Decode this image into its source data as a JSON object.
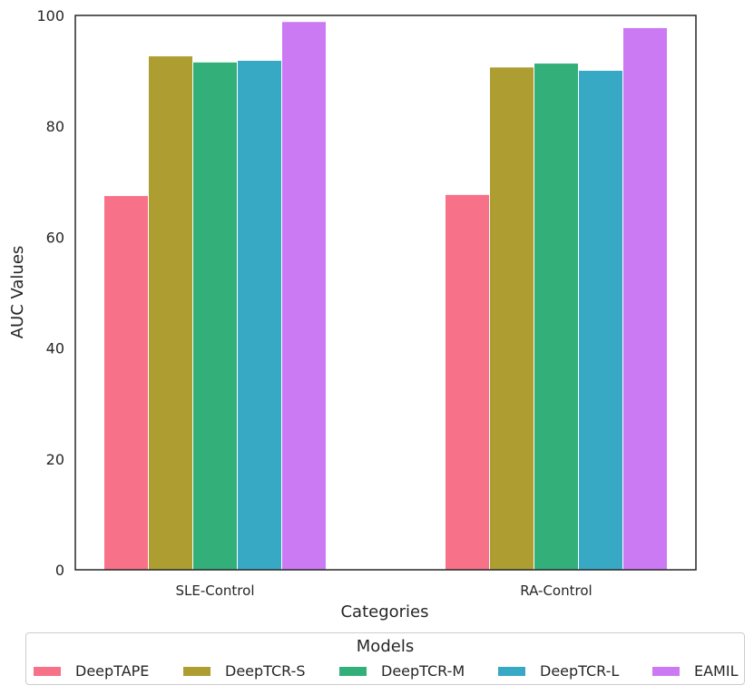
{
  "chart_data": {
    "type": "bar",
    "title": "",
    "xlabel": "Categories",
    "ylabel": "AUC Values",
    "ylim": [
      0,
      100
    ],
    "yticks": [
      0,
      20,
      40,
      60,
      80,
      100
    ],
    "categories": [
      "SLE-Control",
      "RA-Control"
    ],
    "series": [
      {
        "name": "DeepTAPE",
        "color": "#f77189",
        "values": [
          67.5,
          67.7
        ]
      },
      {
        "name": "DeepTCR-S",
        "color": "#ae9d31",
        "values": [
          92.7,
          90.7
        ]
      },
      {
        "name": "DeepTCR-M",
        "color": "#33b07a",
        "values": [
          91.6,
          91.4
        ]
      },
      {
        "name": "DeepTCR-L",
        "color": "#38a9c5",
        "values": [
          91.9,
          90.1
        ]
      },
      {
        "name": "EAMIL",
        "color": "#cc7af4",
        "values": [
          98.9,
          97.8
        ]
      }
    ],
    "legend": {
      "title": "Models",
      "position": "bottom-center"
    },
    "grid": false
  }
}
